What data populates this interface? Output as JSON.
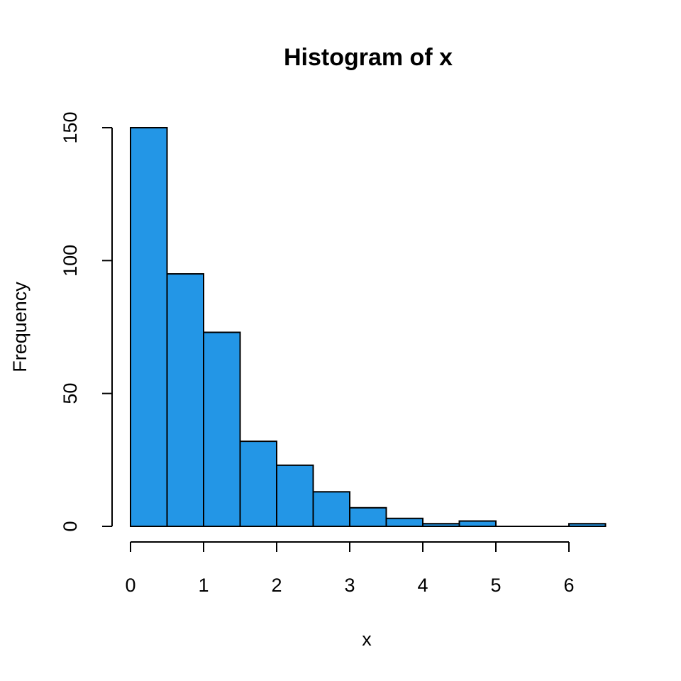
{
  "chart_data": {
    "type": "bar",
    "subtype": "histogram",
    "title": "Histogram of x",
    "xlabel": "x",
    "ylabel": "Frequency",
    "bin_width": 0.5,
    "bins": [
      {
        "x0": 0.0,
        "x1": 0.5,
        "count": 150
      },
      {
        "x0": 0.5,
        "x1": 1.0,
        "count": 95
      },
      {
        "x0": 1.0,
        "x1": 1.5,
        "count": 73
      },
      {
        "x0": 1.5,
        "x1": 2.0,
        "count": 32
      },
      {
        "x0": 2.0,
        "x1": 2.5,
        "count": 23
      },
      {
        "x0": 2.5,
        "x1": 3.0,
        "count": 13
      },
      {
        "x0": 3.0,
        "x1": 3.5,
        "count": 7
      },
      {
        "x0": 3.5,
        "x1": 4.0,
        "count": 3
      },
      {
        "x0": 4.0,
        "x1": 4.5,
        "count": 1
      },
      {
        "x0": 4.5,
        "x1": 5.0,
        "count": 2
      },
      {
        "x0": 5.0,
        "x1": 5.5,
        "count": 0
      },
      {
        "x0": 5.5,
        "x1": 6.0,
        "count": 0
      },
      {
        "x0": 6.0,
        "x1": 6.5,
        "count": 1
      }
    ],
    "xlim": [
      0,
      6.5
    ],
    "ylim": [
      0,
      150
    ],
    "x_ticks": [
      "0",
      "1",
      "2",
      "3",
      "4",
      "5",
      "6"
    ],
    "y_ticks": [
      "0",
      "50",
      "100",
      "150"
    ],
    "bar_color": "#2396e6",
    "edge_color": "#000000",
    "grid": false
  }
}
